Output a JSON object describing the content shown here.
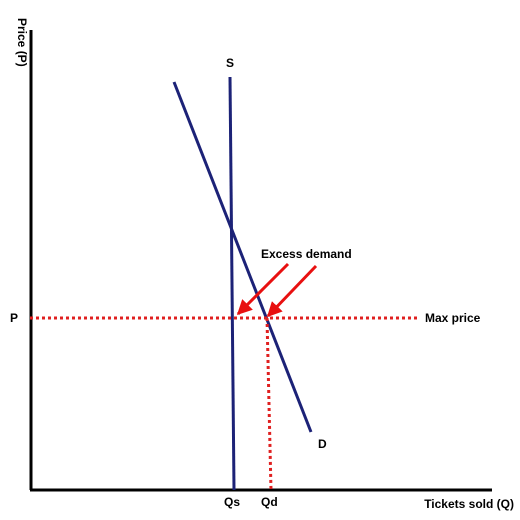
{
  "diagram": {
    "y_axis_label": "Price (P)",
    "x_axis_label": "Tickets sold (Q)",
    "price_label": "P",
    "max_price_label": "Max price",
    "supply_label": "S",
    "demand_label": "D",
    "excess_demand_label": "Excess demand",
    "qs_label": "Qs",
    "qd_label": "Qd"
  },
  "colors": {
    "axis": "#000000",
    "curve": "#1c2277",
    "price_line": "#e02020",
    "arrow": "#e81010"
  }
}
